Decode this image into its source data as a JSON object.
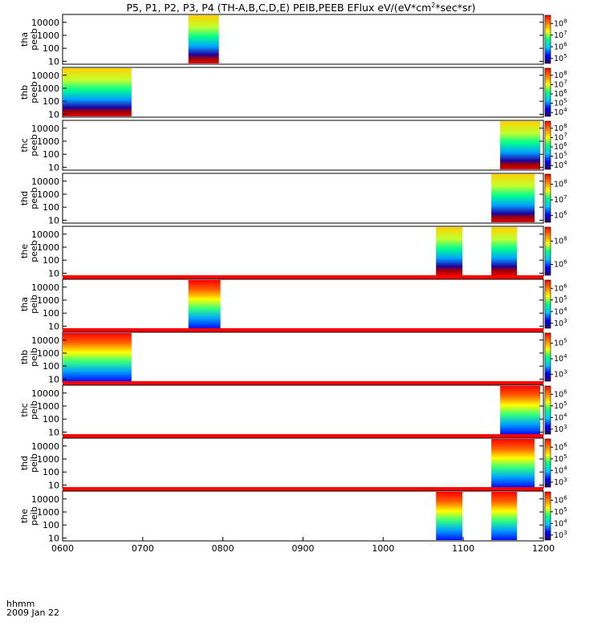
{
  "chart_data": {
    "type": "heatmap",
    "title_parts": {
      "main": "P5, P1, P2, P3, P4 (TH-A,B,C,D,E) PEIB,PEEB EFlux eV/(eV*cm",
      "exp": "2",
      "tail": "*sec*sr)"
    },
    "x_ticks": [
      "0600",
      "0700",
      "0800",
      "0900",
      "1000",
      "1100",
      "1200"
    ],
    "x_range": [
      600,
      1200
    ],
    "x_label_line1": "hhmm",
    "x_label_line2": "2009 Jan 22",
    "y_scale": "log",
    "y_ticks": [
      "10",
      "100",
      "1000",
      "10000"
    ],
    "colorbar_colors": [
      "#2a0060",
      "#0000ff",
      "#00c8ff",
      "#00ff80",
      "#ffff00",
      "#ff8000",
      "#ff0000"
    ],
    "panels": [
      {
        "probe": "tha",
        "dtype": "peeb",
        "cb_ticks": [
          "10",
          "10",
          "10",
          "10"
        ],
        "cb_exp": [
          "5",
          "6",
          "7",
          "8"
        ],
        "bursts": [
          [
            757,
            795
          ]
        ],
        "ylim": [
          6,
          40000
        ]
      },
      {
        "probe": "thb",
        "dtype": "peeb",
        "cb_ticks": [
          "10",
          "10",
          "10",
          "10",
          "10"
        ],
        "cb_exp": [
          "4",
          "5",
          "6",
          "7",
          "8"
        ],
        "bursts": [
          [
            600,
            686
          ]
        ],
        "ylim": [
          6,
          40000
        ]
      },
      {
        "probe": "thc",
        "dtype": "peeb",
        "cb_ticks": [
          "10",
          "10",
          "10",
          "10",
          "10"
        ],
        "cb_exp": [
          "4",
          "5",
          "6",
          "7",
          "8"
        ],
        "bursts": [
          [
            1146,
            1196
          ]
        ],
        "ylim": [
          6,
          40000
        ]
      },
      {
        "probe": "thd",
        "dtype": "peeb",
        "cb_ticks": [
          "10",
          "10",
          "10"
        ],
        "cb_exp": [
          "6",
          "7",
          "8"
        ],
        "bursts": [
          [
            1135,
            1189
          ]
        ],
        "ylim": [
          6,
          40000
        ]
      },
      {
        "probe": "the",
        "dtype": "peeb",
        "cb_ticks": [
          "10",
          "10"
        ],
        "cb_exp": [
          "6",
          "8"
        ],
        "bursts": [
          [
            1066,
            1099
          ],
          [
            1135,
            1167
          ]
        ],
        "ylim": [
          6,
          40000
        ]
      },
      {
        "probe": "tha",
        "dtype": "peib",
        "cb_ticks": [
          "10",
          "10",
          "10",
          "10"
        ],
        "cb_exp": [
          "3",
          "4",
          "5",
          "6"
        ],
        "bursts": [
          [
            757,
            797
          ]
        ],
        "ylim": [
          6,
          40000
        ]
      },
      {
        "probe": "thb",
        "dtype": "peib",
        "cb_ticks": [
          "10",
          "10",
          "10"
        ],
        "cb_exp": [
          "3",
          "4",
          "5"
        ],
        "bursts": [
          [
            600,
            686
          ]
        ],
        "ylim": [
          6,
          40000
        ]
      },
      {
        "probe": "thc",
        "dtype": "peib",
        "cb_ticks": [
          "10",
          "10",
          "10",
          "10"
        ],
        "cb_exp": [
          "3",
          "4",
          "5",
          "6"
        ],
        "bursts": [
          [
            1146,
            1196
          ]
        ],
        "ylim": [
          6,
          40000
        ]
      },
      {
        "probe": "thd",
        "dtype": "peib",
        "cb_ticks": [
          "10",
          "10",
          "10",
          "10"
        ],
        "cb_exp": [
          "3",
          "4",
          "5",
          "6"
        ],
        "bursts": [
          [
            1135,
            1189
          ]
        ],
        "ylim": [
          6,
          40000
        ]
      },
      {
        "probe": "the",
        "dtype": "peib",
        "cb_ticks": [
          "10",
          "10",
          "10",
          "10"
        ],
        "cb_exp": [
          "3",
          "4",
          "5",
          "6"
        ],
        "bursts": [
          [
            1066,
            1099
          ],
          [
            1135,
            1167
          ]
        ],
        "ylim": [
          6,
          40000
        ]
      }
    ]
  }
}
